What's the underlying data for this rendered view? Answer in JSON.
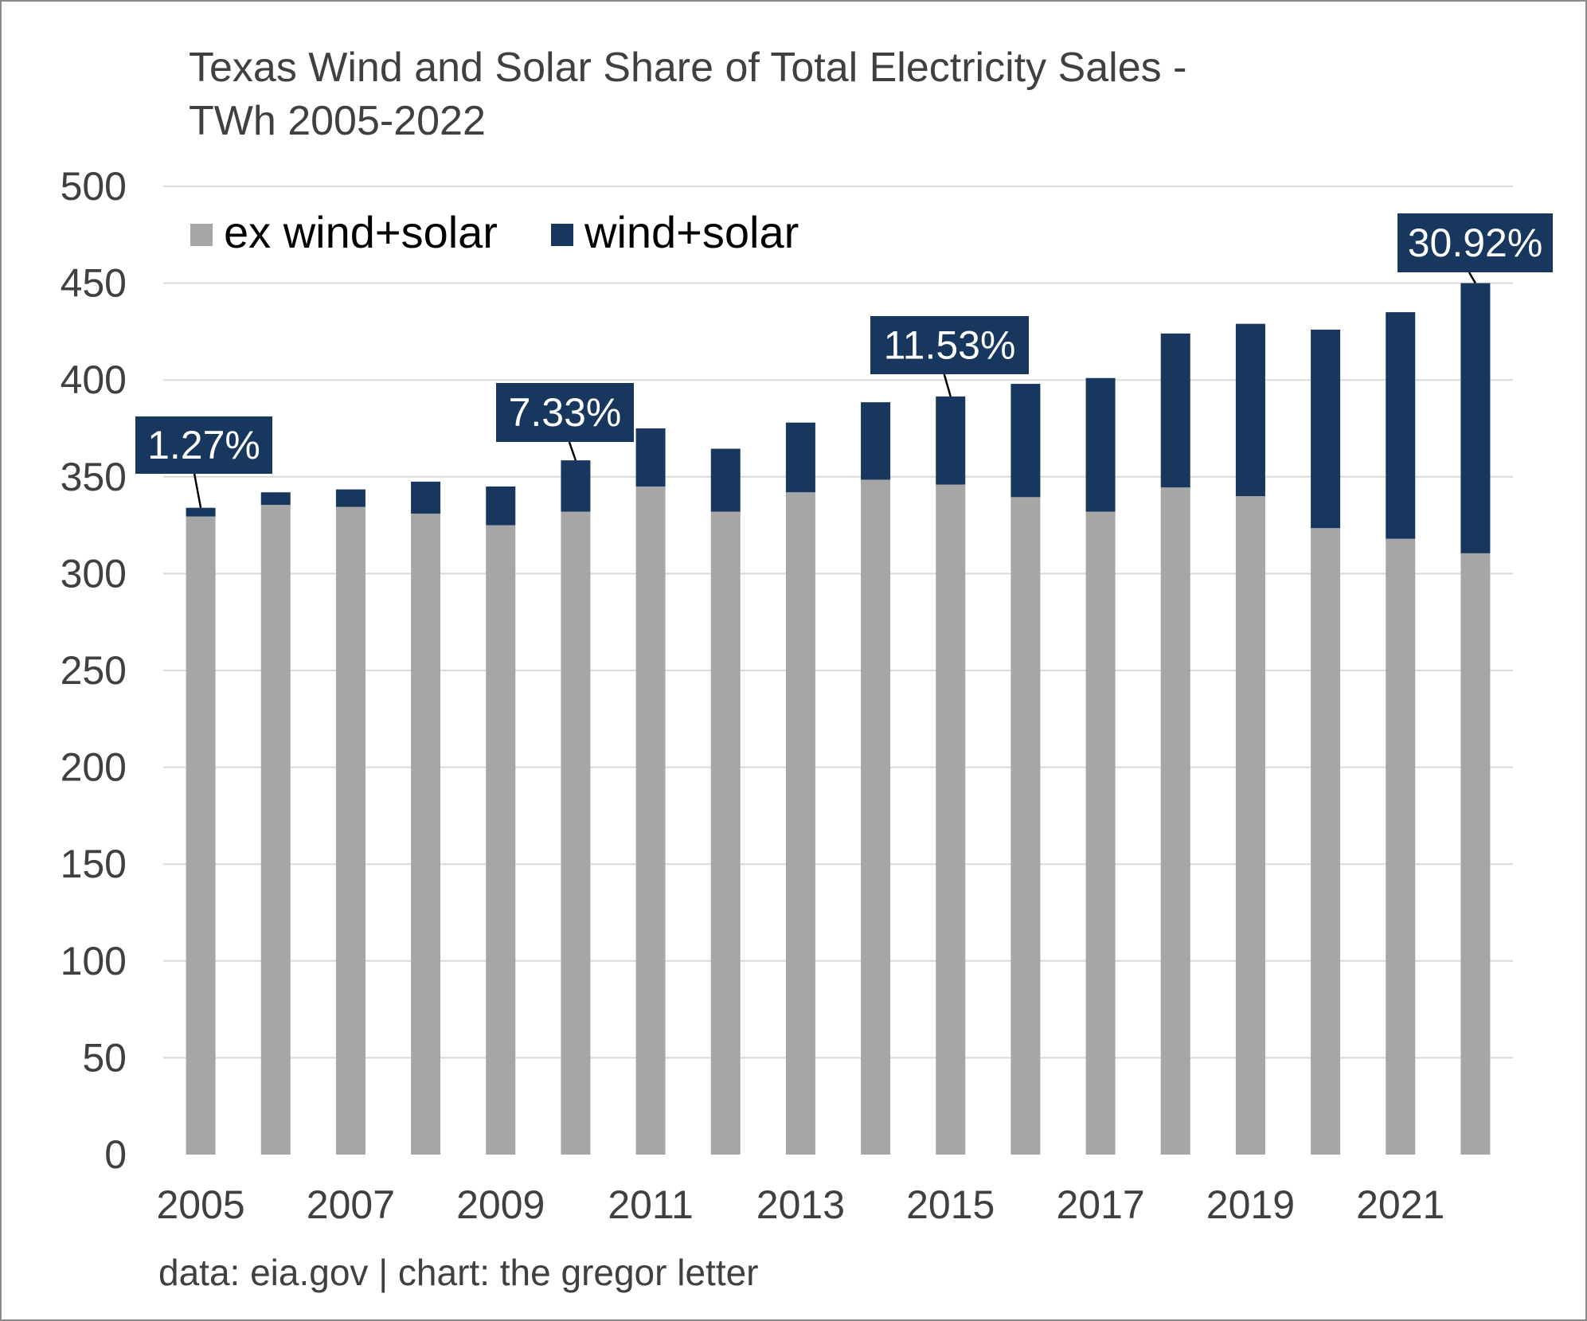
{
  "chart_data": {
    "type": "bar",
    "stacked": true,
    "title": "Texas Wind and Solar Share of Total Electricity Sales -",
    "title_line2": "TWh 2005-2022",
    "xlabel": "",
    "ylabel": "",
    "ylim": [
      0,
      500
    ],
    "yticks": [
      "0",
      "50",
      "100",
      "150",
      "200",
      "250",
      "300",
      "350",
      "400",
      "450",
      "500"
    ],
    "categories": [
      2005,
      2006,
      2007,
      2008,
      2009,
      2010,
      2011,
      2012,
      2013,
      2014,
      2015,
      2016,
      2017,
      2018,
      2019,
      2020,
      2021,
      2022
    ],
    "xtick_labels": [
      "2005",
      "",
      "2007",
      "",
      "2009",
      "",
      "2011",
      "",
      "2013",
      "",
      "2015",
      "",
      "2017",
      "",
      "2019",
      "",
      "2021",
      ""
    ],
    "series": [
      {
        "name": "ex wind+solar",
        "color": "#a6a6a6",
        "values": [
          329.5,
          335.5,
          334.5,
          331,
          325,
          332,
          345,
          332,
          342,
          348.5,
          346,
          339.5,
          332,
          344.5,
          340,
          323.5,
          318,
          310.5
        ]
      },
      {
        "name": "wind+solar",
        "color": "#17375e",
        "values": [
          4.5,
          6.5,
          9,
          16.5,
          20,
          26.5,
          30,
          32.5,
          36,
          40,
          45.5,
          58.5,
          69,
          79.5,
          89,
          102.5,
          117,
          139.5
        ]
      }
    ],
    "annotations": [
      {
        "category": 2005,
        "text": "1.27%"
      },
      {
        "category": 2010,
        "text": "7.33%"
      },
      {
        "category": 2015,
        "text": "11.53%"
      },
      {
        "category": 2022,
        "text": "30.92%"
      }
    ],
    "legend": {
      "position": "top-left"
    },
    "grid": true,
    "source": "data: eia.gov | chart: the gregor letter"
  }
}
